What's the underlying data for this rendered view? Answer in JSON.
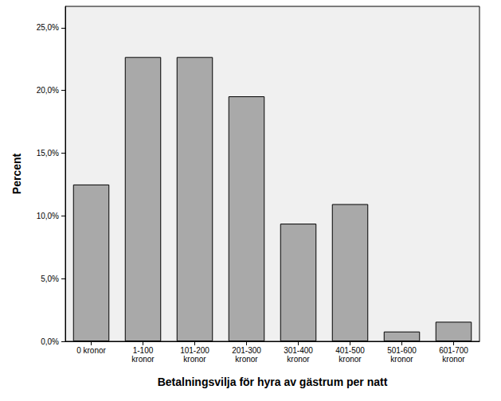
{
  "chart_data": {
    "type": "bar",
    "x_label": "Betalningsvilja för hyra av gästrum per natt",
    "y_label": "Percent",
    "categories": [
      "0 kronor",
      "1-100\nkronor",
      "101-200\nkronor",
      "201-300\nkronor",
      "301-400\nkronor",
      "401-500\nkronor",
      "501-600\nkronor",
      "601-700\nkronor"
    ],
    "values": [
      12.5,
      22.66,
      22.66,
      19.53,
      9.38,
      10.94,
      0.78,
      1.56
    ],
    "color": "#a9a9a9",
    "ylim": [
      0,
      26.7
    ],
    "yticks": [
      {
        "value": 0,
        "label": "0,0%"
      },
      {
        "value": 5,
        "label": "5,0%"
      },
      {
        "value": 10,
        "label": "10,0%"
      },
      {
        "value": 15,
        "label": "15,0%"
      },
      {
        "value": 20,
        "label": "20,0%"
      },
      {
        "value": 25,
        "label": "25,0%"
      }
    ],
    "grid": false
  }
}
